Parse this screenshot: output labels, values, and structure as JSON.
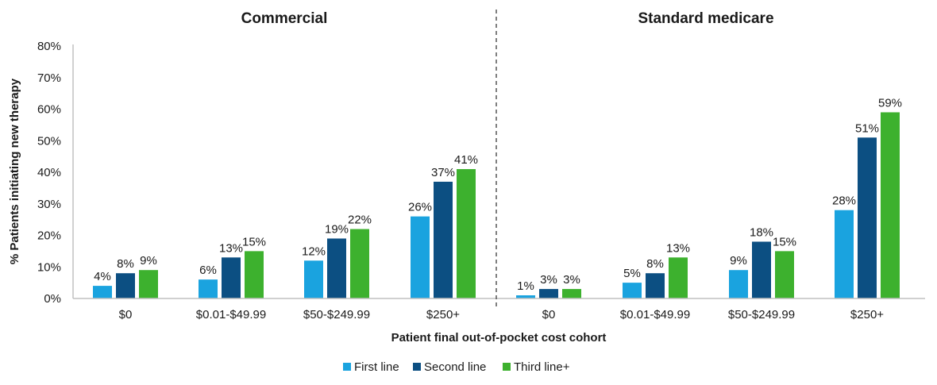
{
  "chart_data": {
    "type": "bar",
    "ylabel": "% Patients initiating new therapy",
    "xlabel": "Patient final out-of-pocket cost cohort",
    "ylim": [
      0,
      80
    ],
    "yticks": [
      "0%",
      "10%",
      "20%",
      "30%",
      "40%",
      "50%",
      "60%",
      "70%",
      "80%"
    ],
    "categories": [
      "$0",
      "$0.01-$49.99",
      "$50-$249.99",
      "$250+"
    ],
    "legend_position": "bottom",
    "grid": false,
    "series_colors": [
      "#1aa3df",
      "#0c4f82",
      "#3db12e"
    ],
    "legend": [
      "First line",
      "Second line",
      "Third line+"
    ],
    "panels": [
      {
        "title": "Commercial",
        "series": [
          {
            "name": "First line",
            "values": [
              4,
              6,
              12,
              26
            ],
            "labels": [
              "4%",
              "6%",
              "12%",
              "26%"
            ]
          },
          {
            "name": "Second line",
            "values": [
              8,
              13,
              19,
              37
            ],
            "labels": [
              "8%",
              "13%",
              "19%",
              "37%"
            ]
          },
          {
            "name": "Third line+",
            "values": [
              9,
              15,
              22,
              41
            ],
            "labels": [
              "9%",
              "15%",
              "22%",
              "41%"
            ]
          }
        ]
      },
      {
        "title": "Standard medicare",
        "series": [
          {
            "name": "First line",
            "values": [
              1,
              5,
              9,
              28
            ],
            "labels": [
              "1%",
              "5%",
              "9%",
              "28%"
            ]
          },
          {
            "name": "Second line",
            "values": [
              3,
              8,
              18,
              51
            ],
            "labels": [
              "3%",
              "8%",
              "18%",
              "51%"
            ]
          },
          {
            "name": "Third line+",
            "values": [
              3,
              13,
              15,
              59
            ],
            "labels": [
              "3%",
              "13%",
              "15%",
              "59%"
            ]
          }
        ]
      }
    ]
  }
}
